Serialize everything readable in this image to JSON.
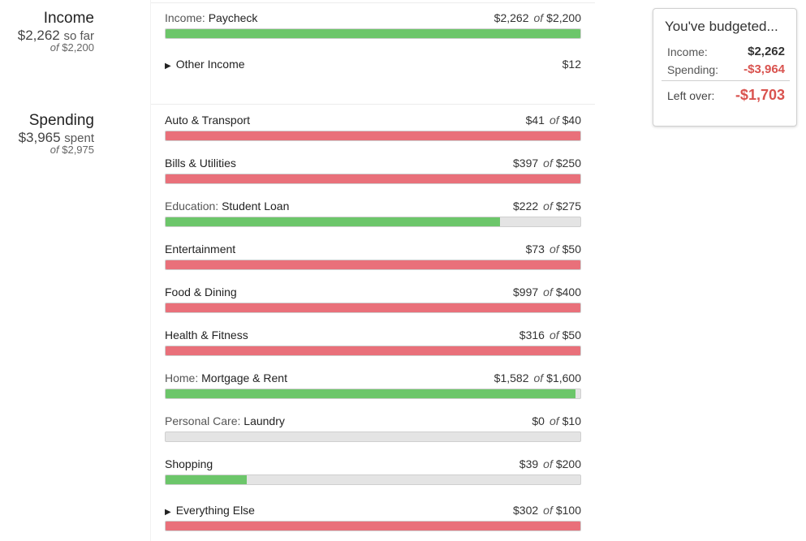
{
  "income_summary": {
    "title": "Income",
    "amount": "$2,262",
    "suffix": "so far",
    "of_label": "of",
    "of_amount": "$2,200"
  },
  "spending_summary": {
    "title": "Spending",
    "amount": "$3,965",
    "suffix": "spent",
    "of_label": "of",
    "of_amount": "$2,975"
  },
  "of_word": "of",
  "rows": [
    {
      "prefix": "Income:",
      "name": "Paycheck",
      "spent": "$2,262",
      "budget": "$2,200",
      "progress": 1.0,
      "color": "#6cc66a",
      "status": "green"
    },
    {
      "prefix": "",
      "name": "Other Income",
      "spent": "$12",
      "budget": "",
      "progress": null,
      "status": "none",
      "expandable": true
    },
    {
      "prefix": "",
      "name": "Auto & Transport",
      "spent": "$41",
      "budget": "$40",
      "progress": 1.0,
      "color": "#e9707a",
      "status": "red"
    },
    {
      "prefix": "",
      "name": "Bills & Utilities",
      "spent": "$397",
      "budget": "$250",
      "progress": 1.0,
      "color": "#e9707a",
      "status": "red"
    },
    {
      "prefix": "Education:",
      "name": "Student Loan",
      "spent": "$222",
      "budget": "$275",
      "progress": 0.807,
      "color": "#6cc66a",
      "status": "green"
    },
    {
      "prefix": "",
      "name": "Entertainment",
      "spent": "$73",
      "budget": "$50",
      "progress": 1.0,
      "color": "#e9707a",
      "status": "red"
    },
    {
      "prefix": "",
      "name": "Food & Dining",
      "spent": "$997",
      "budget": "$400",
      "progress": 1.0,
      "color": "#e9707a",
      "status": "red"
    },
    {
      "prefix": "",
      "name": "Health & Fitness",
      "spent": "$316",
      "budget": "$50",
      "progress": 1.0,
      "color": "#e9707a",
      "status": "red"
    },
    {
      "prefix": "Home:",
      "name": "Mortgage & Rent",
      "spent": "$1,582",
      "budget": "$1,600",
      "progress": 0.989,
      "color": "#6cc66a",
      "status": "green"
    },
    {
      "prefix": "Personal Care:",
      "name": "Laundry",
      "spent": "$0",
      "budget": "$10",
      "progress": 0.0,
      "color": "#6cc66a",
      "status": "green"
    },
    {
      "prefix": "",
      "name": "Shopping",
      "spent": "$39",
      "budget": "$200",
      "progress": 0.195,
      "color": "#6cc66a",
      "status": "green"
    },
    {
      "prefix": "",
      "name": "Everything Else",
      "spent": "$302",
      "budget": "$100",
      "progress": 1.0,
      "color": "#e9707a",
      "status": "red",
      "expandable": true
    }
  ],
  "budget_card": {
    "heading": "You've budgeted...",
    "income_label": "Income:",
    "income_value": "$2,262",
    "spending_label": "Spending:",
    "spending_value": "-$3,964",
    "left_over_label": "Left over:",
    "left_over_value": "-$1,703",
    "negative_color": "#d9534f"
  }
}
